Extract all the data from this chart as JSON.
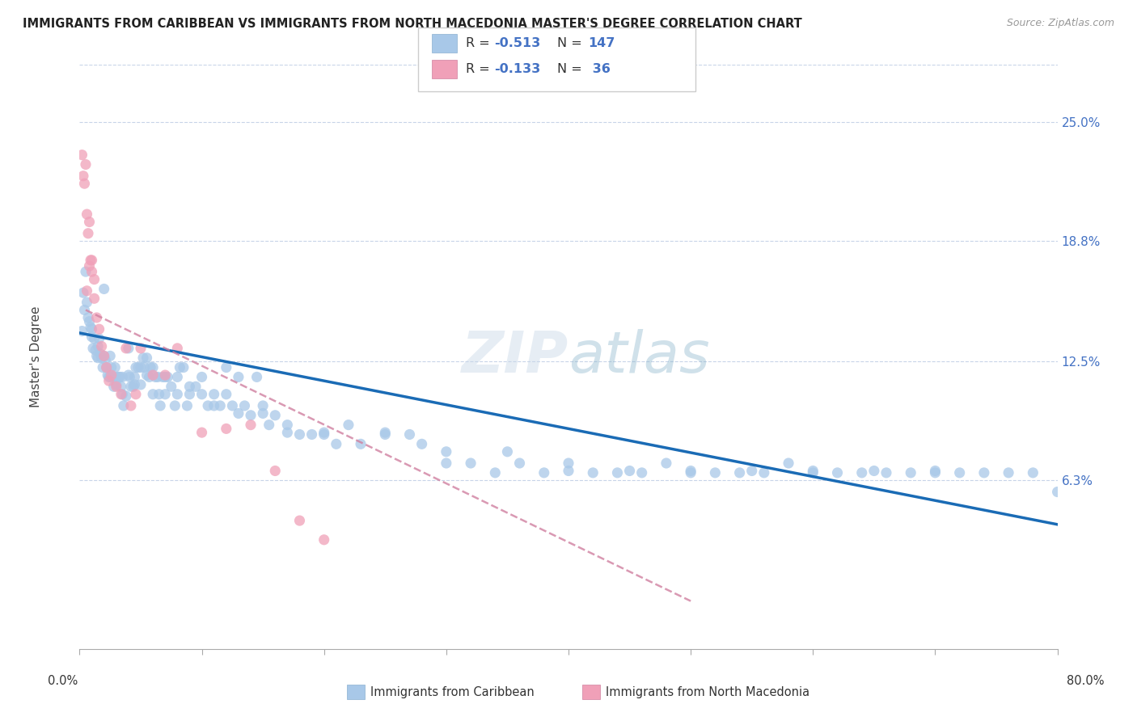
{
  "title": "IMMIGRANTS FROM CARIBBEAN VS IMMIGRANTS FROM NORTH MACEDONIA MASTER'S DEGREE CORRELATION CHART",
  "source": "Source: ZipAtlas.com",
  "ylabel": "Master's Degree",
  "ytick_labels": [
    "25.0%",
    "18.8%",
    "12.5%",
    "6.3%"
  ],
  "ytick_values": [
    0.25,
    0.188,
    0.125,
    0.063
  ],
  "xlim": [
    0.0,
    0.8
  ],
  "ylim": [
    -0.025,
    0.28
  ],
  "color_caribbean": "#a8c8e8",
  "color_macedonia": "#f0a0b8",
  "color_line_caribbean": "#1a6bb5",
  "color_line_macedonia": "#d080a0",
  "watermark": "ZIPatlas",
  "caribbean_x": [
    0.002,
    0.003,
    0.004,
    0.005,
    0.006,
    0.007,
    0.008,
    0.009,
    0.01,
    0.011,
    0.012,
    0.013,
    0.014,
    0.015,
    0.016,
    0.017,
    0.018,
    0.019,
    0.02,
    0.021,
    0.022,
    0.023,
    0.024,
    0.025,
    0.026,
    0.027,
    0.028,
    0.029,
    0.03,
    0.032,
    0.033,
    0.034,
    0.035,
    0.036,
    0.038,
    0.04,
    0.041,
    0.042,
    0.044,
    0.045,
    0.046,
    0.048,
    0.05,
    0.052,
    0.053,
    0.055,
    0.057,
    0.058,
    0.06,
    0.062,
    0.064,
    0.066,
    0.068,
    0.07,
    0.072,
    0.075,
    0.078,
    0.08,
    0.082,
    0.085,
    0.088,
    0.09,
    0.095,
    0.1,
    0.105,
    0.11,
    0.115,
    0.12,
    0.125,
    0.13,
    0.135,
    0.14,
    0.145,
    0.15,
    0.155,
    0.16,
    0.17,
    0.18,
    0.19,
    0.2,
    0.21,
    0.22,
    0.23,
    0.25,
    0.27,
    0.28,
    0.3,
    0.32,
    0.34,
    0.36,
    0.38,
    0.4,
    0.42,
    0.44,
    0.46,
    0.48,
    0.5,
    0.52,
    0.54,
    0.56,
    0.58,
    0.6,
    0.62,
    0.64,
    0.66,
    0.68,
    0.7,
    0.72,
    0.74,
    0.76,
    0.78,
    0.8,
    0.01,
    0.015,
    0.02,
    0.025,
    0.03,
    0.035,
    0.04,
    0.045,
    0.05,
    0.055,
    0.06,
    0.065,
    0.07,
    0.08,
    0.09,
    0.1,
    0.11,
    0.12,
    0.13,
    0.15,
    0.17,
    0.2,
    0.25,
    0.3,
    0.35,
    0.4,
    0.45,
    0.5,
    0.55,
    0.6,
    0.65,
    0.7
  ],
  "caribbean_y": [
    0.141,
    0.161,
    0.152,
    0.172,
    0.156,
    0.148,
    0.146,
    0.143,
    0.142,
    0.132,
    0.137,
    0.131,
    0.128,
    0.127,
    0.137,
    0.129,
    0.127,
    0.122,
    0.163,
    0.126,
    0.122,
    0.118,
    0.117,
    0.117,
    0.122,
    0.117,
    0.112,
    0.122,
    0.117,
    0.117,
    0.117,
    0.112,
    0.117,
    0.102,
    0.107,
    0.132,
    0.117,
    0.112,
    0.112,
    0.117,
    0.122,
    0.122,
    0.122,
    0.127,
    0.122,
    0.127,
    0.117,
    0.122,
    0.122,
    0.117,
    0.117,
    0.102,
    0.117,
    0.117,
    0.117,
    0.112,
    0.102,
    0.117,
    0.122,
    0.122,
    0.102,
    0.112,
    0.112,
    0.117,
    0.102,
    0.102,
    0.102,
    0.122,
    0.102,
    0.117,
    0.102,
    0.097,
    0.117,
    0.102,
    0.092,
    0.097,
    0.092,
    0.087,
    0.087,
    0.087,
    0.082,
    0.092,
    0.082,
    0.087,
    0.087,
    0.082,
    0.072,
    0.072,
    0.067,
    0.072,
    0.067,
    0.072,
    0.067,
    0.067,
    0.067,
    0.072,
    0.067,
    0.067,
    0.067,
    0.067,
    0.072,
    0.067,
    0.067,
    0.067,
    0.067,
    0.067,
    0.067,
    0.067,
    0.067,
    0.067,
    0.067,
    0.057,
    0.138,
    0.133,
    0.128,
    0.128,
    0.113,
    0.108,
    0.118,
    0.113,
    0.113,
    0.118,
    0.108,
    0.108,
    0.108,
    0.108,
    0.108,
    0.108,
    0.108,
    0.108,
    0.098,
    0.098,
    0.088,
    0.088,
    0.088,
    0.078,
    0.078,
    0.068,
    0.068,
    0.068,
    0.068,
    0.068,
    0.068,
    0.068
  ],
  "macedonia_x": [
    0.002,
    0.003,
    0.004,
    0.005,
    0.006,
    0.007,
    0.008,
    0.009,
    0.01,
    0.012,
    0.014,
    0.016,
    0.018,
    0.02,
    0.022,
    0.024,
    0.026,
    0.03,
    0.034,
    0.038,
    0.042,
    0.046,
    0.05,
    0.06,
    0.07,
    0.08,
    0.1,
    0.12,
    0.14,
    0.16,
    0.18,
    0.2,
    0.006,
    0.008,
    0.01,
    0.012
  ],
  "macedonia_y": [
    0.233,
    0.222,
    0.218,
    0.228,
    0.202,
    0.192,
    0.198,
    0.178,
    0.178,
    0.168,
    0.148,
    0.142,
    0.133,
    0.128,
    0.122,
    0.115,
    0.118,
    0.112,
    0.108,
    0.132,
    0.102,
    0.108,
    0.132,
    0.118,
    0.118,
    0.132,
    0.088,
    0.09,
    0.092,
    0.068,
    0.042,
    0.032,
    0.162,
    0.175,
    0.172,
    0.158
  ]
}
